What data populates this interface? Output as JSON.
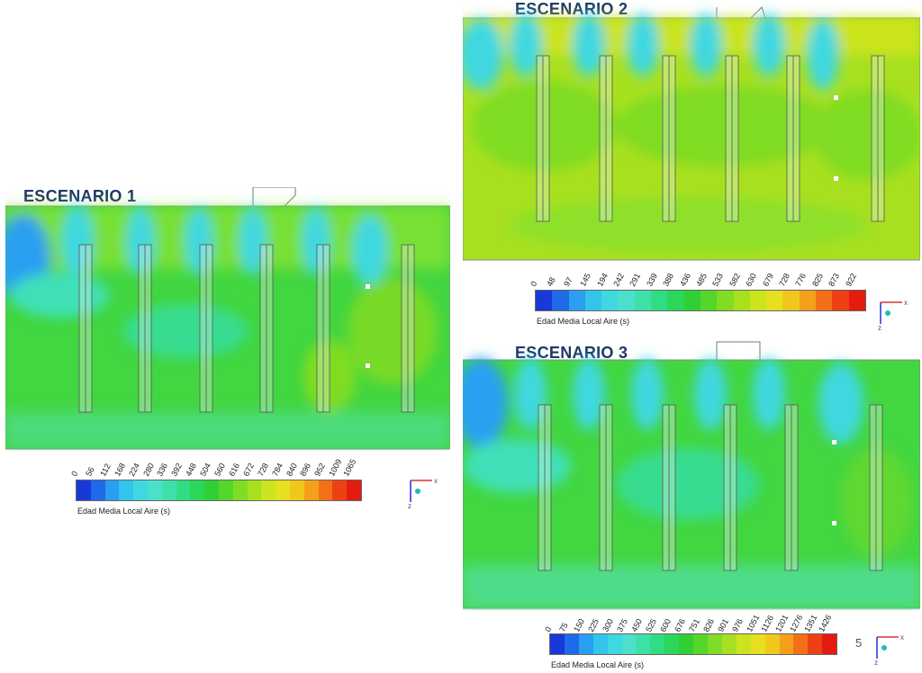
{
  "scenarios": [
    {
      "title": "ESCENARIO 1",
      "legend_caption": "Edad Media Local Aire (s)",
      "legend_ticks": [
        "0",
        "56",
        "112",
        "168",
        "224",
        "280",
        "336",
        "392",
        "448",
        "504",
        "560",
        "616",
        "672",
        "728",
        "784",
        "840",
        "896",
        "952",
        "1009",
        "1065"
      ]
    },
    {
      "title": "ESCENARIO 2",
      "legend_caption": "Edad Media Local Aire (s)",
      "legend_ticks": [
        "0",
        "48",
        "97",
        "145",
        "194",
        "242",
        "291",
        "339",
        "388",
        "436",
        "485",
        "533",
        "582",
        "630",
        "679",
        "728",
        "776",
        "825",
        "873",
        "922"
      ]
    },
    {
      "title": "ESCENARIO 3",
      "legend_caption": "Edad Media Local Aire (s)",
      "legend_ticks": [
        "0",
        "75",
        "150",
        "225",
        "300",
        "375",
        "450",
        "525",
        "600",
        "676",
        "751",
        "826",
        "901",
        "976",
        "1051",
        "1126",
        "1201",
        "1276",
        "1351",
        "1426"
      ]
    }
  ],
  "colormap": [
    "#1838d8",
    "#1f6ae8",
    "#2a9ef0",
    "#33c4ec",
    "#3fd8e0",
    "#4ce0cc",
    "#3fe0a8",
    "#30dc84",
    "#2bd65a",
    "#30d034",
    "#55d62a",
    "#80dc24",
    "#a8e020",
    "#cce41e",
    "#e6e01e",
    "#f0c81c",
    "#f4a01a",
    "#f47018",
    "#ee4014",
    "#e41c10"
  ],
  "axis_labels": {
    "x": "x",
    "z": "z"
  },
  "page_number": "5"
}
